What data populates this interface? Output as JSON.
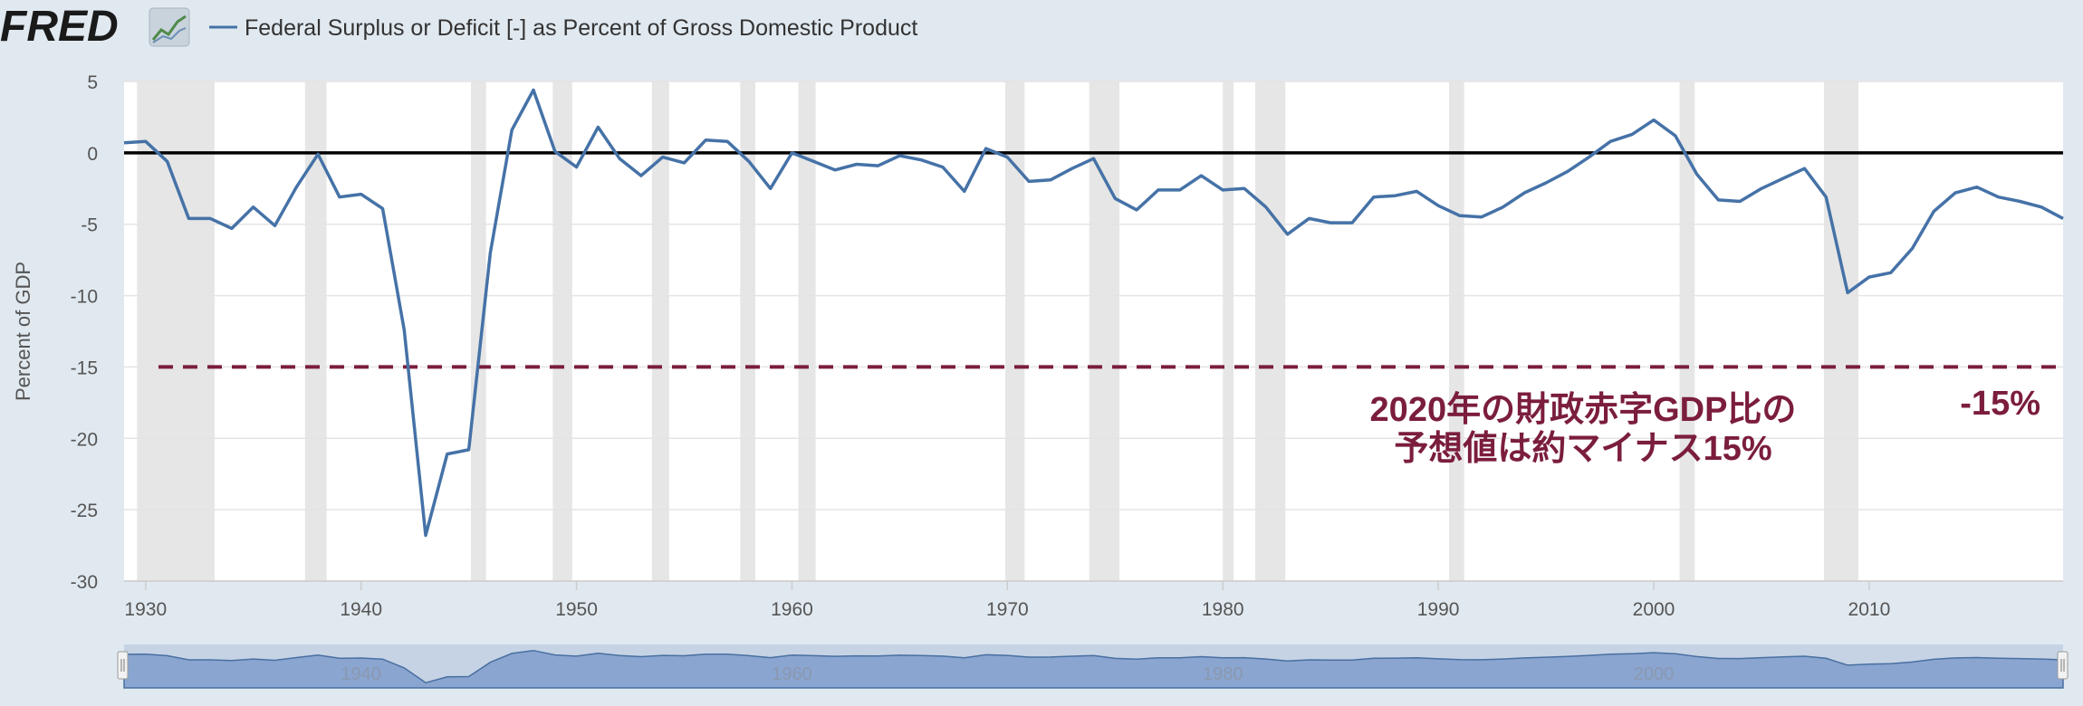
{
  "header": {
    "logo_text": "FRED",
    "series_title": "Federal Surplus or Deficit [-] as Percent of Gross Domestic Product"
  },
  "colors": {
    "series": "#4572a7",
    "annotation": "#7b1d3d",
    "recession": "#e6e6e6",
    "background": "#e1e9f0",
    "navigator_fill": "#8aa5d0"
  },
  "chart_data": {
    "type": "line",
    "title": "Federal Surplus or Deficit [-] as Percent of Gross Domestic Product",
    "xlabel": "",
    "ylabel": "Percent of GDP",
    "xlim": [
      1929,
      2019
    ],
    "ylim": [
      -30,
      5
    ],
    "x_ticks": [
      1930,
      1940,
      1950,
      1960,
      1970,
      1980,
      1990,
      2000,
      2010
    ],
    "y_ticks": [
      5,
      0,
      -5,
      -10,
      -15,
      -20,
      -25,
      -30
    ],
    "grid": true,
    "series": [
      {
        "x": [
          1929,
          1930,
          1931,
          1932,
          1933,
          1934,
          1935,
          1936,
          1937,
          1938,
          1939,
          1940,
          1941,
          1942,
          1943,
          1944,
          1945,
          1946,
          1947,
          1948,
          1949,
          1950,
          1951,
          1952,
          1953,
          1954,
          1955,
          1956,
          1957,
          1958,
          1959,
          1960,
          1961,
          1962,
          1963,
          1964,
          1965,
          1966,
          1967,
          1968,
          1969,
          1970,
          1971,
          1972,
          1973,
          1974,
          1975,
          1976,
          1977,
          1978,
          1979,
          1980,
          1981,
          1982,
          1983,
          1984,
          1985,
          1986,
          1987,
          1988,
          1989,
          1990,
          1991,
          1992,
          1993,
          1994,
          1995,
          1996,
          1997,
          1998,
          1999,
          2000,
          2001,
          2002,
          2003,
          2004,
          2005,
          2006,
          2007,
          2008,
          2009,
          2010,
          2011,
          2012,
          2013,
          2014,
          2015,
          2016,
          2017,
          2018,
          2019
        ],
        "values": [
          0.7,
          0.8,
          -0.6,
          -4.6,
          -4.6,
          -5.3,
          -3.8,
          -5.1,
          -2.4,
          -0.1,
          -3.1,
          -2.9,
          -3.9,
          -12.4,
          -26.8,
          -21.1,
          -20.8,
          -7.0,
          1.6,
          4.4,
          0.1,
          -1.0,
          1.8,
          -0.4,
          -1.6,
          -0.3,
          -0.7,
          0.9,
          0.8,
          -0.6,
          -2.5,
          0.0,
          -0.6,
          -1.2,
          -0.8,
          -0.9,
          -0.2,
          -0.5,
          -1.0,
          -2.7,
          0.3,
          -0.3,
          -2.0,
          -1.9,
          -1.1,
          -0.4,
          -3.2,
          -4.0,
          -2.6,
          -2.6,
          -1.6,
          -2.6,
          -2.5,
          -3.8,
          -5.7,
          -4.6,
          -4.9,
          -4.9,
          -3.1,
          -3.0,
          -2.7,
          -3.7,
          -4.4,
          -4.5,
          -3.8,
          -2.8,
          -2.1,
          -1.3,
          -0.3,
          0.8,
          1.3,
          2.3,
          1.2,
          -1.5,
          -3.3,
          -3.4,
          -2.5,
          -1.8,
          -1.1,
          -3.1,
          -9.8,
          -8.7,
          -8.4,
          -6.7,
          -4.1,
          -2.8,
          -2.4,
          -3.1,
          -3.4,
          -3.8,
          -4.6
        ]
      }
    ],
    "recessions": [
      [
        1929.6,
        1933.2
      ],
      [
        1937.4,
        1938.4
      ],
      [
        1945.1,
        1945.8
      ],
      [
        1948.9,
        1949.8
      ],
      [
        1953.5,
        1954.3
      ],
      [
        1957.6,
        1958.3
      ],
      [
        1960.3,
        1961.1
      ],
      [
        1969.9,
        1970.8
      ],
      [
        1973.8,
        1975.2
      ],
      [
        1980.0,
        1980.5
      ],
      [
        1981.5,
        1982.9
      ],
      [
        1990.5,
        1991.2
      ],
      [
        2001.2,
        2001.9
      ],
      [
        2007.9,
        2009.5
      ]
    ],
    "reference_line": {
      "y": -15,
      "label": "-15%"
    },
    "annotation_lines": [
      "2020年の財政赤字GDP比の",
      "予想値は約マイナス15%"
    ],
    "navigator_ticks": [
      "1940",
      "1960",
      "1980",
      "2000"
    ]
  }
}
